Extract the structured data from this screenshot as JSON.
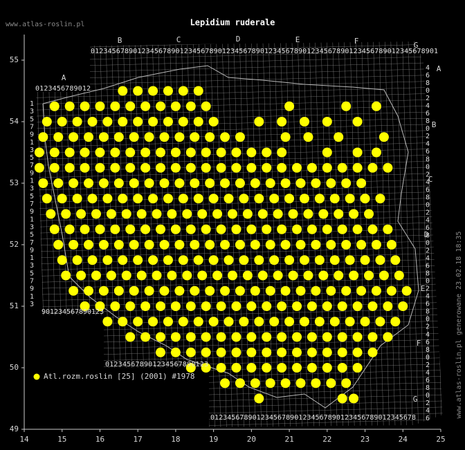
{
  "chart_data": {
    "type": "scatter",
    "title": "Lepidium ruderale",
    "site": "www.atlas-roslin.pl",
    "generated": "www.atlas-roslin.pl generowane 23.02.18 18:35",
    "legend": "Atl.rozm.roslin [25] (2001) #1978",
    "color": "#ffff00",
    "xlim": [
      14,
      25
    ],
    "ylim": [
      49,
      55.4
    ],
    "xticks": [
      14,
      15,
      16,
      17,
      18,
      19,
      20,
      21,
      22,
      23,
      24,
      25
    ],
    "yticks": [
      49,
      50,
      51,
      52,
      53,
      54,
      55
    ],
    "grid_letters": [
      "A",
      "B",
      "C",
      "D",
      "E",
      "F",
      "G"
    ],
    "grid_digits": [
      "0",
      "1",
      "2",
      "3",
      "4",
      "5",
      "6",
      "7",
      "8",
      "9"
    ],
    "rows": [
      {
        "y": 54.5,
        "x": [
          16.6,
          17.0,
          17.4,
          17.8,
          18.2,
          18.6
        ]
      },
      {
        "y": 54.25,
        "x": [
          14.8,
          15.2,
          15.6,
          16.0,
          16.4,
          16.8,
          17.2,
          17.6,
          18.0,
          18.4,
          18.8,
          21.0,
          22.5,
          23.3
        ]
      },
      {
        "y": 54.0,
        "x": [
          14.6,
          15.0,
          15.4,
          15.8,
          16.2,
          16.6,
          17.0,
          17.4,
          17.8,
          18.2,
          18.6,
          19.0,
          20.2,
          20.8,
          21.4,
          22.0,
          22.8
        ]
      },
      {
        "y": 53.75,
        "x": [
          14.5,
          14.9,
          15.3,
          15.7,
          16.1,
          16.5,
          16.9,
          17.3,
          17.7,
          18.1,
          18.5,
          18.9,
          19.3,
          19.7,
          20.9,
          21.5,
          22.3,
          23.5
        ]
      },
      {
        "y": 53.5,
        "x": [
          14.4,
          14.8,
          15.2,
          15.6,
          16.0,
          16.4,
          16.8,
          17.2,
          17.6,
          18.0,
          18.4,
          18.8,
          19.2,
          19.6,
          20.0,
          20.4,
          20.8,
          22.0,
          22.8,
          23.3
        ]
      },
      {
        "y": 53.25,
        "x": [
          14.4,
          14.8,
          15.2,
          15.6,
          16.0,
          16.4,
          16.8,
          17.2,
          17.6,
          18.0,
          18.4,
          18.8,
          19.2,
          19.6,
          20.0,
          20.4,
          20.8,
          21.2,
          21.6,
          22.0,
          22.4,
          22.8,
          23.2,
          23.6
        ]
      },
      {
        "y": 53.0,
        "x": [
          14.5,
          14.9,
          15.3,
          15.7,
          16.1,
          16.5,
          16.9,
          17.3,
          17.7,
          18.1,
          18.5,
          18.9,
          19.3,
          19.7,
          20.1,
          20.5,
          20.9,
          21.3,
          21.7,
          22.1,
          22.5,
          22.9
        ]
      },
      {
        "y": 52.75,
        "x": [
          14.6,
          15.0,
          15.4,
          15.8,
          16.2,
          16.6,
          17.0,
          17.4,
          17.8,
          18.2,
          18.6,
          19.0,
          19.4,
          19.8,
          20.2,
          20.6,
          21.0,
          21.4,
          21.8,
          22.2,
          22.6,
          23.0,
          23.4
        ]
      },
      {
        "y": 52.5,
        "x": [
          14.7,
          15.1,
          15.5,
          15.9,
          16.3,
          16.7,
          17.1,
          17.5,
          17.9,
          18.3,
          18.7,
          19.1,
          19.5,
          19.9,
          20.3,
          20.7,
          21.1,
          21.5,
          21.9,
          22.3,
          22.7,
          23.1
        ]
      },
      {
        "y": 52.25,
        "x": [
          14.8,
          15.2,
          15.6,
          16.0,
          16.4,
          16.8,
          17.2,
          17.6,
          18.0,
          18.4,
          18.8,
          19.2,
          19.6,
          20.0,
          20.4,
          20.8,
          21.2,
          21.6,
          22.0,
          22.4,
          22.8,
          23.2,
          23.6
        ]
      },
      {
        "y": 52.0,
        "x": [
          14.9,
          15.3,
          15.7,
          16.1,
          16.5,
          16.9,
          17.3,
          17.7,
          18.1,
          18.5,
          18.9,
          19.3,
          19.7,
          20.1,
          20.5,
          20.9,
          21.3,
          21.7,
          22.1,
          22.5,
          22.9,
          23.3,
          23.7
        ]
      },
      {
        "y": 51.75,
        "x": [
          15.0,
          15.4,
          15.8,
          16.2,
          16.6,
          17.0,
          17.4,
          17.8,
          18.2,
          18.6,
          19.0,
          19.4,
          19.8,
          20.2,
          20.6,
          21.0,
          21.4,
          21.8,
          22.2,
          22.6,
          23.0,
          23.4,
          23.8
        ]
      },
      {
        "y": 51.5,
        "x": [
          15.1,
          15.5,
          15.9,
          16.3,
          16.7,
          17.1,
          17.5,
          17.9,
          18.3,
          18.7,
          19.1,
          19.5,
          19.9,
          20.3,
          20.7,
          21.1,
          21.5,
          21.9,
          22.3,
          22.7,
          23.1,
          23.5,
          23.9
        ]
      },
      {
        "y": 51.25,
        "x": [
          15.3,
          15.7,
          16.1,
          16.5,
          16.9,
          17.3,
          17.7,
          18.1,
          18.5,
          18.9,
          19.3,
          19.7,
          20.1,
          20.5,
          20.9,
          21.3,
          21.7,
          22.1,
          22.5,
          22.9,
          23.3,
          23.7,
          24.1
        ]
      },
      {
        "y": 51.0,
        "x": [
          15.6,
          16.0,
          16.4,
          16.8,
          17.2,
          17.6,
          18.0,
          18.4,
          18.8,
          19.2,
          19.6,
          20.0,
          20.4,
          20.8,
          21.2,
          21.6,
          22.0,
          22.4,
          22.8,
          23.2,
          23.6,
          24.0
        ]
      },
      {
        "y": 50.75,
        "x": [
          16.2,
          16.6,
          17.0,
          17.4,
          17.8,
          18.2,
          18.6,
          19.0,
          19.4,
          19.8,
          20.2,
          20.6,
          21.0,
          21.4,
          21.8,
          22.2,
          22.6,
          23.0,
          23.4,
          23.8
        ]
      },
      {
        "y": 50.5,
        "x": [
          16.8,
          17.2,
          17.6,
          18.0,
          18.4,
          18.8,
          19.2,
          19.6,
          20.0,
          20.4,
          20.8,
          21.2,
          21.6,
          22.0,
          22.4,
          22.8,
          23.2,
          23.6
        ]
      },
      {
        "y": 50.25,
        "x": [
          17.6,
          18.0,
          18.4,
          18.8,
          19.2,
          19.6,
          20.0,
          20.4,
          20.8,
          21.2,
          21.6,
          22.0,
          22.4,
          22.8,
          23.2
        ]
      },
      {
        "y": 50.0,
        "x": [
          18.4,
          18.8,
          19.2,
          19.6,
          20.0,
          20.4,
          20.8,
          21.2,
          21.6,
          22.0,
          22.4,
          22.8
        ]
      },
      {
        "y": 49.75,
        "x": [
          19.3,
          19.7,
          20.1,
          20.5,
          20.9,
          21.3,
          21.7,
          22.1,
          22.5
        ]
      },
      {
        "y": 49.5,
        "x": [
          20.2,
          22.4,
          22.7
        ]
      }
    ]
  }
}
